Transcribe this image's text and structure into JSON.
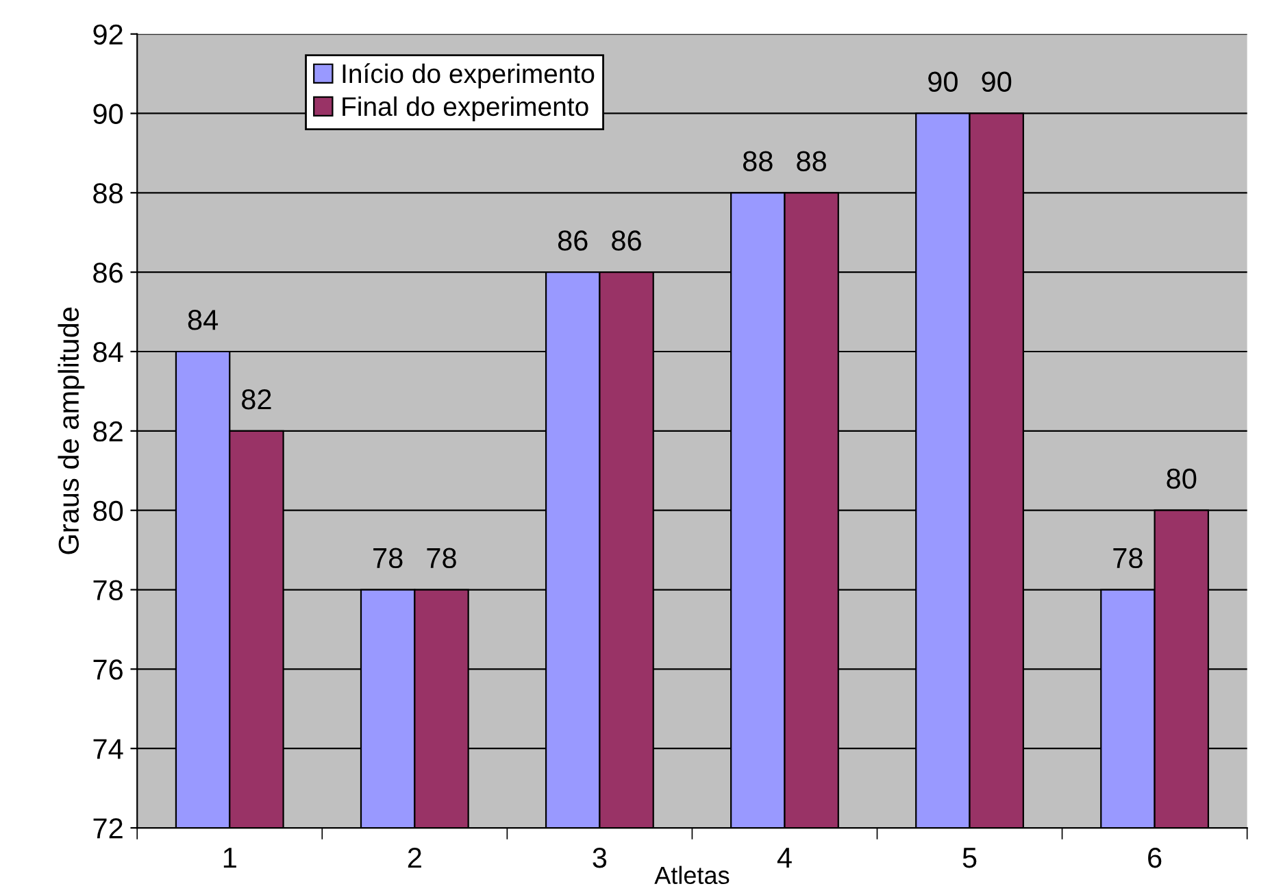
{
  "chart_data": {
    "type": "bar",
    "xlabel": "Atletas",
    "ylabel": "Graus de amplitude",
    "categories": [
      "1",
      "2",
      "3",
      "4",
      "5",
      "6"
    ],
    "series": [
      {
        "name": "Início do experimento",
        "color": "#9999ff",
        "values": [
          84,
          78,
          86,
          88,
          90,
          78
        ]
      },
      {
        "name": "Final do experimento",
        "color": "#993366",
        "values": [
          82,
          78,
          86,
          88,
          90,
          80
        ]
      }
    ],
    "ylim": [
      72,
      92
    ],
    "yticks": [
      72,
      74,
      76,
      78,
      80,
      82,
      84,
      86,
      88,
      90,
      92
    ],
    "grid": "y",
    "legend": "top left",
    "data_labels": true
  }
}
